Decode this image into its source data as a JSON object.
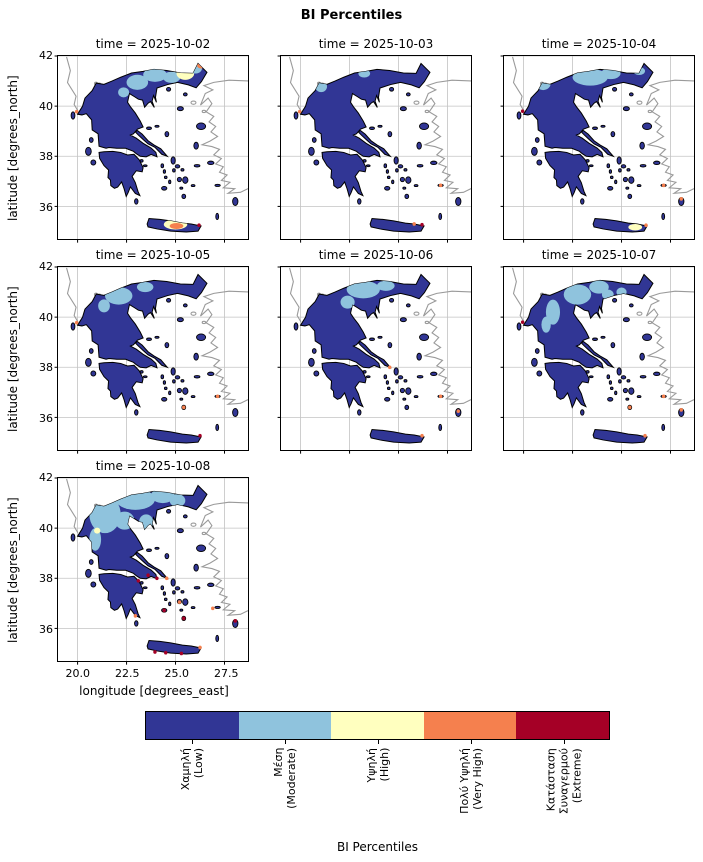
{
  "chart_data": {
    "type": "heatmap",
    "title": "BI Percentiles",
    "colorbar_label": "BI Percentiles",
    "xlabel": "longitude [degrees_east]",
    "ylabel": "latitude [degrees_north]",
    "xlim": [
      19.0,
      28.7
    ],
    "ylim": [
      34.7,
      42.0
    ],
    "x_ticks": [
      20.0,
      22.5,
      25.0,
      27.5
    ],
    "x_ticklabels": [
      "20.0",
      "22.5",
      "25.0",
      "27.5"
    ],
    "y_ticks": [
      42,
      40,
      38,
      36
    ],
    "y_ticklabels": [
      "42",
      "40",
      "38",
      "36"
    ],
    "grid": true,
    "legend_position": "bottom",
    "categories": [
      {
        "key": "low",
        "label": "Χαμηλή\n(Low)",
        "color": "#313695"
      },
      {
        "key": "moderate",
        "label": "Μέση\n(Moderate)",
        "color": "#8fc3dd"
      },
      {
        "key": "high",
        "label": "Υψηλή\n(High)",
        "color": "#ffffbf"
      },
      {
        "key": "very_high",
        "label": "Πολύ Υψηλή\n(Very High)",
        "color": "#f5804e"
      },
      {
        "key": "extreme",
        "label": "Κατάσταση\nΣυναγερμού\n(Extreme)",
        "color": "#a50026"
      }
    ],
    "facets": [
      {
        "label": "time = 2025-10-02",
        "regions": [
          [
            "moderate",
            23.05,
            40.95,
            0.55,
            0.3
          ],
          [
            "moderate",
            23.95,
            41.25,
            0.6,
            0.28
          ],
          [
            "moderate",
            24.8,
            41.15,
            0.45,
            0.22
          ],
          [
            "moderate",
            22.35,
            40.55,
            0.28,
            0.2
          ],
          [
            "high",
            25.5,
            41.3,
            0.45,
            0.25
          ],
          [
            "moderate",
            26.0,
            41.5,
            0.35,
            0.2
          ],
          [
            "very_high",
            26.3,
            41.62,
            0.2,
            0.12
          ],
          [
            "high",
            25.0,
            35.28,
            0.6,
            0.2
          ],
          [
            "very_high",
            25.05,
            35.22,
            0.35,
            0.12
          ]
        ],
        "spots": [
          [
            "very_high",
            19.95,
            39.78
          ],
          [
            "extreme",
            26.2,
            35.25
          ]
        ]
      },
      {
        "label": "time = 2025-10-03",
        "regions": [
          [
            "moderate",
            21.05,
            40.78,
            0.3,
            0.22
          ],
          [
            "moderate",
            23.25,
            41.3,
            0.3,
            0.16
          ]
        ],
        "spots": [
          [
            "very_high",
            19.95,
            39.78
          ],
          [
            "extreme",
            26.2,
            35.27
          ],
          [
            "very_high",
            25.8,
            35.3
          ],
          [
            "very_high",
            27.15,
            36.84
          ]
        ]
      },
      {
        "label": "time = 2025-10-04",
        "regions": [
          [
            "moderate",
            23.4,
            41.15,
            0.9,
            0.33
          ],
          [
            "moderate",
            24.45,
            41.3,
            0.5,
            0.22
          ],
          [
            "moderate",
            21.0,
            40.9,
            0.38,
            0.26
          ],
          [
            "moderate",
            25.9,
            41.4,
            0.3,
            0.16
          ],
          [
            "high",
            25.7,
            35.17,
            0.35,
            0.13
          ]
        ],
        "spots": [
          [
            "extreme",
            19.95,
            39.8
          ],
          [
            "very_high",
            27.15,
            36.84
          ],
          [
            "very_high",
            28.05,
            36.3
          ],
          [
            "very_high",
            26.25,
            35.25
          ]
        ]
      },
      {
        "label": "time = 2025-10-05",
        "regions": [
          [
            "moderate",
            22.1,
            40.85,
            0.7,
            0.35
          ],
          [
            "moderate",
            21.35,
            40.45,
            0.3,
            0.26
          ],
          [
            "moderate",
            23.45,
            41.2,
            0.42,
            0.2
          ]
        ],
        "spots": [
          [
            "very_high",
            19.95,
            39.78
          ],
          [
            "extreme",
            26.25,
            35.27
          ],
          [
            "very_high",
            27.15,
            36.84
          ],
          [
            "very_high",
            25.42,
            36.4
          ]
        ]
      },
      {
        "label": "time = 2025-10-06",
        "regions": [
          [
            "moderate",
            23.2,
            41.1,
            0.85,
            0.35
          ],
          [
            "moderate",
            22.4,
            40.6,
            0.36,
            0.26
          ],
          [
            "moderate",
            24.35,
            41.25,
            0.45,
            0.2
          ]
        ],
        "spots": [
          [
            "very_high",
            28.05,
            36.25
          ],
          [
            "very_high",
            26.2,
            35.27
          ],
          [
            "very_high",
            24.55,
            38.0
          ],
          [
            "very_high",
            27.15,
            36.84
          ]
        ]
      },
      {
        "label": "time = 2025-10-07",
        "regions": [
          [
            "moderate",
            21.5,
            40.2,
            0.36,
            0.5
          ],
          [
            "moderate",
            22.75,
            40.9,
            0.7,
            0.4
          ],
          [
            "moderate",
            23.85,
            41.2,
            0.5,
            0.26
          ],
          [
            "moderate",
            21.15,
            39.7,
            0.24,
            0.32
          ],
          [
            "moderate",
            25.0,
            41.0,
            0.26,
            0.18
          ],
          [
            "moderate",
            24.3,
            40.9,
            0.3,
            0.2
          ]
        ],
        "spots": [
          [
            "extreme",
            19.95,
            39.8
          ],
          [
            "very_high",
            26.2,
            35.27
          ],
          [
            "very_high",
            27.15,
            36.84
          ],
          [
            "very_high",
            28.05,
            36.3
          ],
          [
            "very_high",
            25.42,
            36.4
          ]
        ]
      },
      {
        "label": "time = 2025-10-08",
        "regions": [
          [
            "moderate",
            21.4,
            40.55,
            0.8,
            0.75
          ],
          [
            "moderate",
            22.95,
            41.15,
            1.0,
            0.42
          ],
          [
            "moderate",
            24.35,
            41.3,
            0.6,
            0.3
          ],
          [
            "moderate",
            22.4,
            40.3,
            0.5,
            0.36
          ],
          [
            "moderate",
            20.9,
            39.55,
            0.3,
            0.45
          ],
          [
            "moderate",
            23.5,
            40.25,
            0.36,
            0.3
          ],
          [
            "moderate",
            25.1,
            41.1,
            0.4,
            0.26
          ],
          [
            "high",
            21.0,
            39.9,
            0.16,
            0.12
          ]
        ],
        "spots": [
          [
            "extreme",
            24.05,
            38.0
          ],
          [
            "extreme",
            23.6,
            38.12
          ],
          [
            "very_high",
            24.55,
            38.0
          ],
          [
            "extreme",
            25.42,
            36.4
          ],
          [
            "very_high",
            26.9,
            36.8
          ],
          [
            "extreme",
            24.5,
            35.03
          ],
          [
            "extreme",
            25.3,
            35.0
          ],
          [
            "extreme",
            23.95,
            35.06
          ],
          [
            "very_high",
            26.25,
            35.24
          ],
          [
            "extreme",
            28.05,
            36.3
          ],
          [
            "very_high",
            25.2,
            37.05
          ],
          [
            "extreme",
            24.42,
            36.72
          ],
          [
            "very_high",
            22.95,
            36.5
          ],
          [
            "extreme",
            23.1,
            37.9
          ]
        ]
      }
    ]
  }
}
